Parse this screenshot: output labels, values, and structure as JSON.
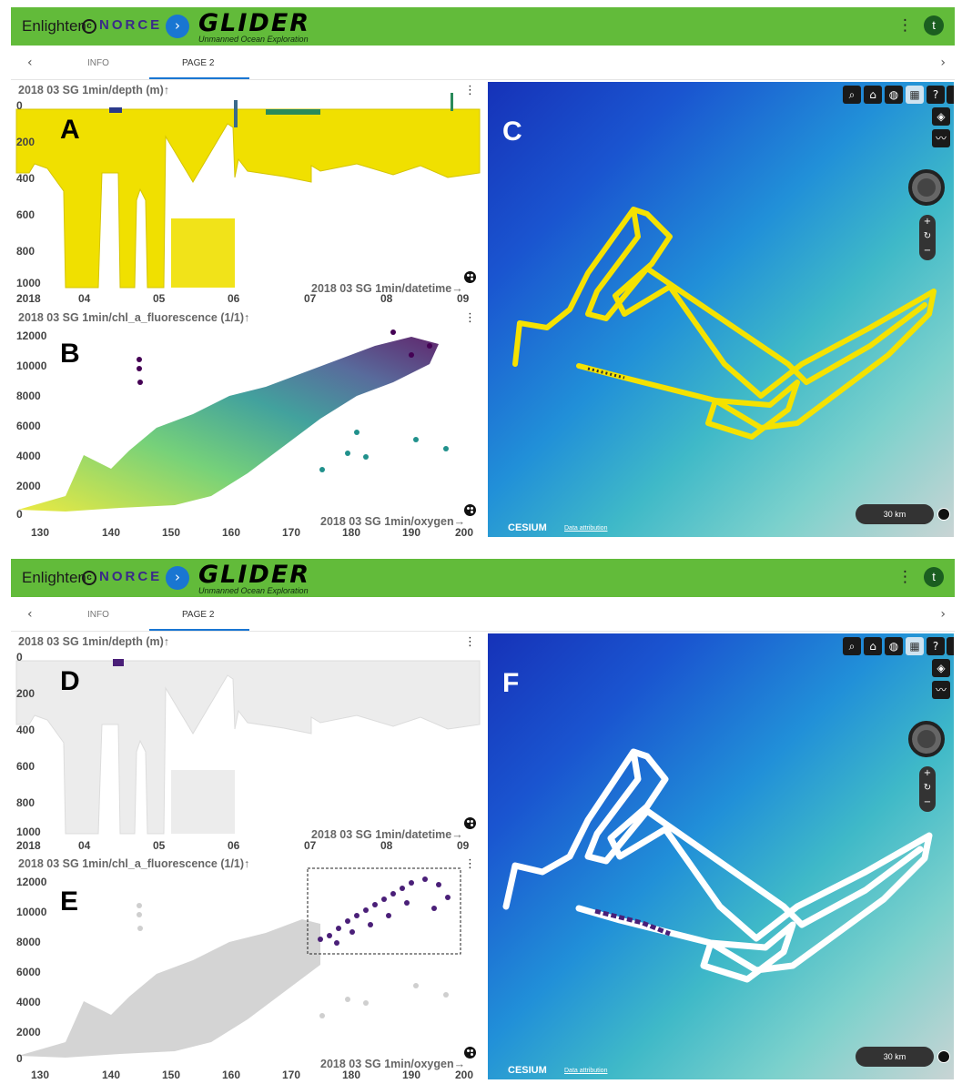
{
  "app": {
    "brand": "Enlighten",
    "norce": "NORCE",
    "glider_title": "GLIDER",
    "glider_subtitle": "Unmanned Ocean Exploration",
    "user_initial": "t"
  },
  "tabs": [
    {
      "label": "INFO",
      "active": false
    },
    {
      "label": "PAGE 2",
      "active": true
    }
  ],
  "screens": [
    {
      "depth_panel": {
        "letter": "A",
        "title": "2018 03 SG 1min/depth (m)↑",
        "xlabel": "2018 03 SG 1min/datetime→",
        "yticks": [
          "0",
          "200",
          "400",
          "600",
          "800",
          "1000"
        ],
        "xticks": [
          "2018",
          "04",
          "05",
          "06",
          "07",
          "08",
          "09"
        ]
      },
      "scatter_panel": {
        "letter": "B",
        "title": "2018 03 SG 1min/chl_a_fluorescence (1/1)↑",
        "xlabel": "2018 03 SG 1min/oxygen→",
        "yticks": [
          "12000",
          "10000",
          "8000",
          "6000",
          "4000",
          "2000",
          "0"
        ],
        "xticks": [
          "130",
          "140",
          "150",
          "160",
          "170",
          "180",
          "190",
          "200"
        ]
      },
      "map_panel": {
        "letter": "C",
        "scale": "30 km",
        "logo": "CESIUM",
        "attribution": "Data attribution"
      }
    },
    {
      "depth_panel": {
        "letter": "D",
        "title": "2018 03 SG 1min/depth (m)↑",
        "xlabel": "2018 03 SG 1min/datetime→",
        "yticks": [
          "0",
          "200",
          "400",
          "600",
          "800",
          "1000"
        ],
        "xticks": [
          "2018",
          "04",
          "05",
          "06",
          "07",
          "08",
          "09"
        ]
      },
      "scatter_panel": {
        "letter": "E",
        "title": "2018 03 SG 1min/chl_a_fluorescence (1/1)↑",
        "xlabel": "2018 03 SG 1min/oxygen→",
        "yticks": [
          "12000",
          "10000",
          "8000",
          "6000",
          "4000",
          "2000",
          "0"
        ],
        "xticks": [
          "130",
          "140",
          "150",
          "160",
          "170",
          "180",
          "190",
          "200"
        ]
      },
      "map_panel": {
        "letter": "F",
        "scale": "30 km",
        "logo": "CESIUM",
        "attribution": "Data attribution"
      }
    }
  ],
  "icons": {
    "map_search": "search-icon",
    "map_home": "home-icon",
    "map_globe": "globe-icon",
    "map_imagery": "imagery-picker-icon",
    "map_help": "help-icon",
    "map_layers": "layers-icon",
    "map_chart": "chart-icon",
    "palette": "palette-icon"
  },
  "colors": {
    "appbar": "#62bb3a",
    "selection_highlight": "#4a1f78",
    "depth_fill": "#f0e000",
    "track_yellow": "#f5e200",
    "track_white": "#ffffff",
    "unselected_gray": "#c8c8c8"
  },
  "chart_data": [
    {
      "type": "area",
      "title": "2018 03 SG 1min/depth (m)↑",
      "xlabel": "2018 03 SG 1min/datetime→",
      "ylabel": "",
      "ylim": [
        1000,
        0
      ],
      "x_ticks": [
        "2018",
        "04",
        "05",
        "06",
        "07",
        "08",
        "09"
      ],
      "note": "depth profile colored by chl_a_fluorescence"
    },
    {
      "type": "scatter",
      "title": "2018 03 SG 1min/chl_a_fluorescence (1/1)↑",
      "xlabel": "2018 03 SG 1min/oxygen→",
      "ylabel": "",
      "xlim": [
        125,
        200
      ],
      "ylim": [
        0,
        12000
      ],
      "series": [
        {
          "values": [
            [
              130,
              100
            ],
            [
              135,
              2500
            ],
            [
              140,
              1500
            ],
            [
              145,
              3000
            ],
            [
              150,
              4000
            ],
            [
              155,
              3500
            ],
            [
              160,
              5000
            ],
            [
              165,
              6500
            ],
            [
              170,
              7000
            ],
            [
              175,
              8500
            ],
            [
              180,
              9500
            ],
            [
              185,
              10500
            ],
            [
              190,
              11000
            ],
            [
              195,
              11500
            ],
            [
              144,
              10000
            ],
            [
              145,
              8500
            ],
            [
              190,
              5000
            ],
            [
              197,
              4500
            ]
          ]
        }
      ],
      "selection_box": {
        "xlim": [
          173,
          199
        ],
        "ylim": [
          8000,
          12300
        ]
      }
    }
  ]
}
